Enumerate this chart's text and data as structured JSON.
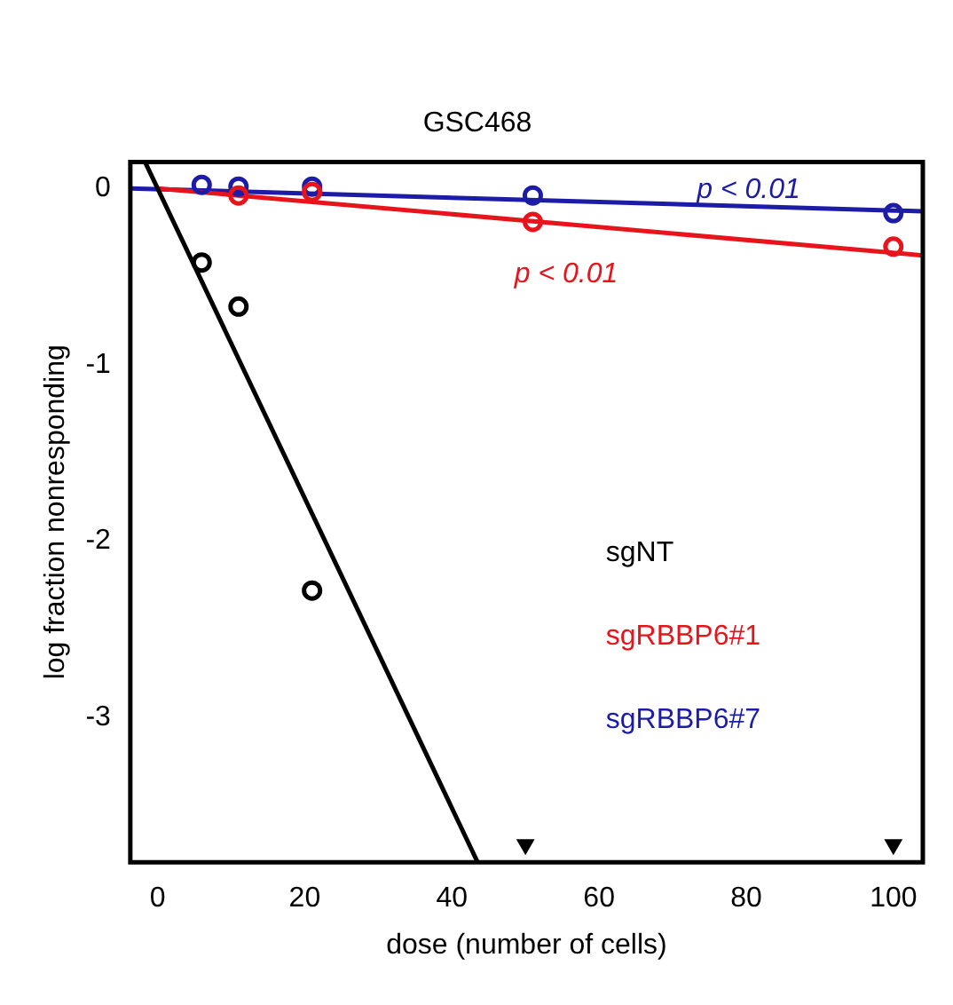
{
  "chart_data": {
    "type": "scatter",
    "title": "GSC468",
    "xlabel": "dose (number of cells)",
    "ylabel": "log fraction nonresponding",
    "xlim": [
      -3.7,
      104
    ],
    "xticks": [
      0,
      20,
      40,
      60,
      80,
      100
    ],
    "ylim": [
      -3.82,
      0.15
    ],
    "yticks": [
      0,
      -1,
      -2,
      -3
    ],
    "grid": false,
    "legend": "bottom right",
    "marker": "circle",
    "series": [
      {
        "name": "sgNT",
        "color": "#000000",
        "x": [
          6,
          11,
          21
        ],
        "values": [
          -0.42,
          -0.67,
          -2.28
        ]
      },
      {
        "marker": "triangle",
        "color": "#000000",
        "x": [
          50,
          100
        ],
        "values": [
          -3.72,
          -3.72
        ]
      },
      {
        "name": "sgRBBP6#1",
        "color": "#e8141c",
        "x": [
          11,
          21,
          51,
          100
        ],
        "values": [
          -0.04,
          -0.02,
          -0.19,
          -0.33
        ]
      },
      {
        "name": "sgRBBP6#7",
        "color": "#1c1ca8",
        "x": [
          6,
          11,
          21,
          51,
          100
        ],
        "values": [
          0.02,
          0.01,
          0.01,
          -0.04,
          -0.14
        ]
      },
      {
        "type": "line",
        "marker": "none",
        "color": "#000000",
        "x": [
          -1.7,
          43.5
        ],
        "values": [
          0.15,
          -3.82
        ]
      },
      {
        "type": "line",
        "marker": "none",
        "color": "#e8141c",
        "x": [
          0,
          104
        ],
        "values": [
          0,
          -0.38
        ]
      },
      {
        "type": "line",
        "marker": "none",
        "color": "#1c1ca8",
        "x": [
          -3.7,
          104
        ],
        "values": [
          0,
          -0.13
        ]
      }
    ],
    "annotations": [
      "p < 0.01",
      "p < 0.01"
    ]
  }
}
